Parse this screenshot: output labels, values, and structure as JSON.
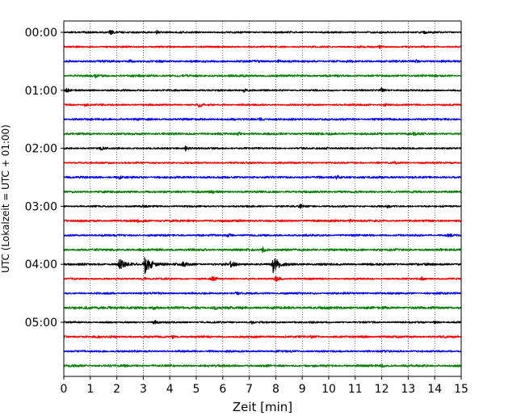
{
  "chart_data": {
    "type": "line",
    "title": "",
    "xlabel": "Zeit  [min]",
    "ylabel": "UTC (Lokalzeit = UTC + 01:00)",
    "xlim": [
      0,
      15
    ],
    "x_ticks": [
      "0",
      "1",
      "2",
      "3",
      "4",
      "5",
      "6",
      "7",
      "8",
      "9",
      "10",
      "11",
      "12",
      "13",
      "14",
      "15"
    ],
    "y_tick_labels": [
      "00:00",
      "01:00",
      "02:00",
      "03:00",
      "04:00",
      "05:00"
    ],
    "y_tick_rows": [
      0,
      4,
      8,
      12,
      16,
      20
    ],
    "row_interval_min": 15,
    "grid": "vertical dotted at each minute",
    "color_cycle": [
      "#000000",
      "#ff0000",
      "#0000ff",
      "#008000"
    ],
    "traces": [
      {
        "start": "00:00",
        "color": "#000000",
        "noise": 0.1,
        "events": [
          {
            "t": 1.75,
            "amp": 0.45
          },
          {
            "t": 3.5,
            "amp": 0.3
          },
          {
            "t": 13.6,
            "amp": 0.2
          }
        ]
      },
      {
        "start": "00:15",
        "color": "#ff0000",
        "noise": 0.1,
        "events": [
          {
            "t": 11.9,
            "amp": 0.3
          }
        ]
      },
      {
        "start": "00:30",
        "color": "#0000ff",
        "noise": 0.12,
        "events": [
          {
            "t": 8.1,
            "amp": 0.22
          },
          {
            "t": 2.5,
            "amp": 0.18
          },
          {
            "t": 13.3,
            "amp": 0.18
          }
        ]
      },
      {
        "start": "00:45",
        "color": "#008000",
        "noise": 0.12,
        "events": [
          {
            "t": 1.2,
            "amp": 0.18
          }
        ]
      },
      {
        "start": "01:00",
        "color": "#000000",
        "noise": 0.1,
        "events": [
          {
            "t": 12.0,
            "amp": 0.4
          },
          {
            "t": 0.1,
            "amp": 0.25
          },
          {
            "t": 6.8,
            "amp": 0.25
          }
        ]
      },
      {
        "start": "01:15",
        "color": "#ff0000",
        "noise": 0.1,
        "events": [
          {
            "t": 5.1,
            "amp": 0.35
          },
          {
            "t": 0.8,
            "amp": 0.3
          },
          {
            "t": 12.1,
            "amp": 0.2
          }
        ]
      },
      {
        "start": "01:30",
        "color": "#0000ff",
        "noise": 0.12,
        "events": [
          {
            "t": 7.4,
            "amp": 0.22
          }
        ]
      },
      {
        "start": "01:45",
        "color": "#008000",
        "noise": 0.12,
        "events": [
          {
            "t": 6.6,
            "amp": 0.25
          },
          {
            "t": 13.2,
            "amp": 0.18
          }
        ]
      },
      {
        "start": "02:00",
        "color": "#000000",
        "noise": 0.1,
        "events": [
          {
            "t": 4.6,
            "amp": 0.4
          },
          {
            "t": 1.4,
            "amp": 0.25
          },
          {
            "t": 9.9,
            "amp": 0.2
          }
        ]
      },
      {
        "start": "02:15",
        "color": "#ff0000",
        "noise": 0.1,
        "events": [
          {
            "t": 12.5,
            "amp": 0.2
          }
        ]
      },
      {
        "start": "02:30",
        "color": "#0000ff",
        "noise": 0.12,
        "events": [
          {
            "t": 10.3,
            "amp": 0.3
          },
          {
            "t": 2.1,
            "amp": 0.2
          }
        ]
      },
      {
        "start": "02:45",
        "color": "#008000",
        "noise": 0.12,
        "events": [
          {
            "t": 5.6,
            "amp": 0.2
          }
        ]
      },
      {
        "start": "03:00",
        "color": "#000000",
        "noise": 0.1,
        "events": [
          {
            "t": 8.9,
            "amp": 0.35
          },
          {
            "t": 3.0,
            "amp": 0.2
          },
          {
            "t": 12.2,
            "amp": 0.2
          }
        ]
      },
      {
        "start": "03:15",
        "color": "#ff0000",
        "noise": 0.12,
        "events": [
          {
            "t": 2.8,
            "amp": 0.25
          },
          {
            "t": 10.8,
            "amp": 0.2
          }
        ]
      },
      {
        "start": "03:30",
        "color": "#0000ff",
        "noise": 0.11,
        "events": [
          {
            "t": 14.5,
            "amp": 0.25
          },
          {
            "t": 6.2,
            "amp": 0.2
          }
        ]
      },
      {
        "start": "03:45",
        "color": "#008000",
        "noise": 0.13,
        "events": [
          {
            "t": 7.5,
            "amp": 0.3
          }
        ]
      },
      {
        "start": "04:00",
        "color": "#000000",
        "noise": 0.12,
        "events": [
          {
            "t": 2.1,
            "amp": 0.85
          },
          {
            "t": 3.05,
            "amp": 1.4
          },
          {
            "t": 4.5,
            "amp": 0.5
          },
          {
            "t": 6.3,
            "amp": 0.5
          },
          {
            "t": 7.9,
            "amp": 1.2
          }
        ]
      },
      {
        "start": "04:15",
        "color": "#ff0000",
        "noise": 0.1,
        "events": [
          {
            "t": 8.0,
            "amp": 0.55
          },
          {
            "t": 5.6,
            "amp": 0.35
          },
          {
            "t": 3.0,
            "amp": 0.3
          },
          {
            "t": 13.5,
            "amp": 0.25
          }
        ]
      },
      {
        "start": "04:30",
        "color": "#0000ff",
        "noise": 0.11,
        "events": [
          {
            "t": 6.5,
            "amp": 0.18
          }
        ]
      },
      {
        "start": "04:45",
        "color": "#008000",
        "noise": 0.14,
        "events": [
          {
            "t": 3.4,
            "amp": 0.25
          },
          {
            "t": 1.7,
            "amp": 0.2
          },
          {
            "t": 5.7,
            "amp": 0.22
          }
        ]
      },
      {
        "start": "05:00",
        "color": "#000000",
        "noise": 0.1,
        "events": [
          {
            "t": 3.4,
            "amp": 0.3
          },
          {
            "t": 7.1,
            "amp": 0.2
          },
          {
            "t": 14.0,
            "amp": 0.2
          }
        ]
      },
      {
        "start": "05:15",
        "color": "#ff0000",
        "noise": 0.12,
        "events": [
          {
            "t": 9.3,
            "amp": 0.25
          },
          {
            "t": 4.1,
            "amp": 0.2
          }
        ]
      },
      {
        "start": "05:30",
        "color": "#0000ff",
        "noise": 0.11,
        "events": [
          {
            "t": 5.5,
            "amp": 0.18
          }
        ]
      },
      {
        "start": "05:45",
        "color": "#008000",
        "noise": 0.12,
        "events": [
          {
            "t": 12.0,
            "amp": 0.22
          },
          {
            "t": 0.3,
            "amp": 0.18
          }
        ]
      }
    ]
  }
}
